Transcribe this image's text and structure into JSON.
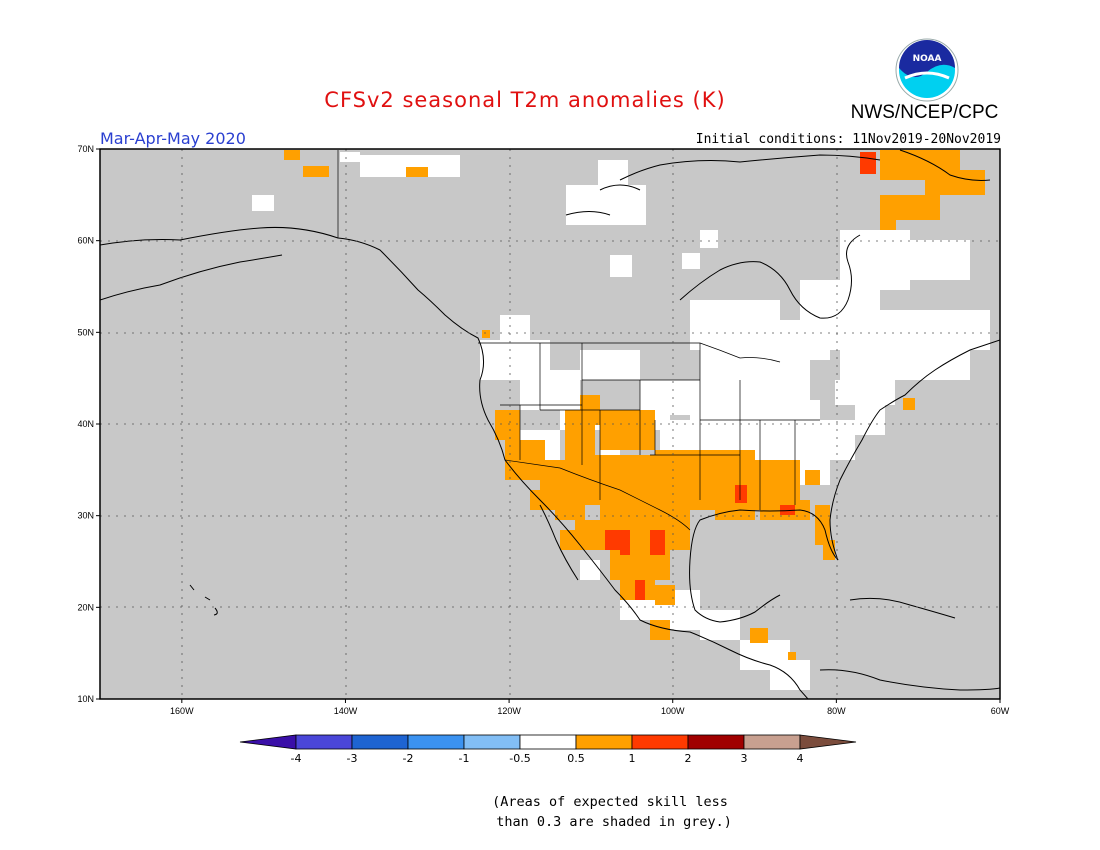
{
  "title": "CFSv2 seasonal T2m anomalies (K)",
  "agency": "NWS/NCEP/CPC",
  "logo_text": "NOAA",
  "period": "Mar-Apr-May 2020",
  "initial_conditions": "Initial conditions: 11Nov2019-20Nov2019",
  "note": "(Areas of expected skill less\n than 0.3 are shaded in grey.)",
  "map": {
    "projection": "lat-lon",
    "lon_range": [
      -170,
      -60
    ],
    "lat_range": [
      10,
      70
    ],
    "lon_ticks": [
      "160W",
      "140W",
      "120W",
      "100W",
      "80W",
      "60W"
    ],
    "lat_ticks": [
      "10N",
      "20N",
      "30N",
      "40N",
      "50N",
      "60N",
      "70N"
    ],
    "colors": {
      "low_skill": "#c8c8c8",
      "near_normal": "#ffffff",
      "warm_0_5_1": "#ffa000",
      "warm_1_2": "#ff3a00",
      "warm_2_3": "#a00000"
    }
  },
  "colorbar": {
    "labels": [
      "-4",
      "-3",
      "-2",
      "-1",
      "-0.5",
      "0.5",
      "1",
      "2",
      "3",
      "4"
    ],
    "colors": [
      "#3a0fa8",
      "#4a46d8",
      "#1e64d2",
      "#3b92f0",
      "#82bef5",
      "#ffffff",
      "#ffa000",
      "#ff3a00",
      "#a00000",
      "#c8a090",
      "#7b4c3c"
    ]
  }
}
